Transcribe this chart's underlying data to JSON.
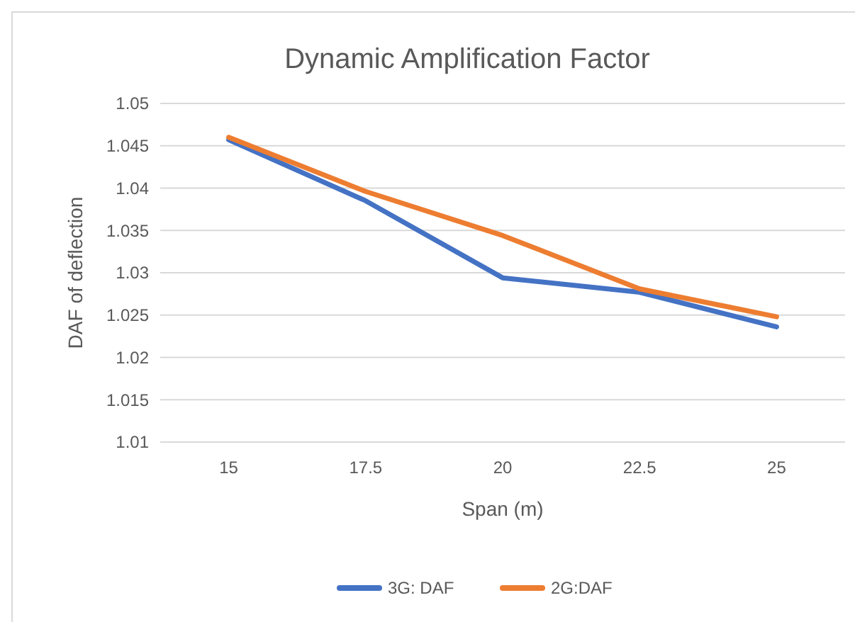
{
  "chart_data": {
    "type": "line",
    "title": "Dynamic Amplification Factor",
    "xlabel": "Span (m)",
    "ylabel": "DAF of deflection",
    "categories": [
      "15",
      "17.5",
      "20",
      "22.5",
      "25"
    ],
    "series": [
      {
        "name": "3G: DAF",
        "color": "#4472c4",
        "values": [
          1.0457,
          1.0385,
          1.0294,
          1.0277,
          1.0236
        ]
      },
      {
        "name": "2G:DAF",
        "color": "#ed7d31",
        "values": [
          1.046,
          1.0396,
          1.0344,
          1.0281,
          1.0248
        ]
      }
    ],
    "ylim": [
      1.01,
      1.05
    ],
    "yticks": [
      1.01,
      1.015,
      1.02,
      1.025,
      1.03,
      1.035,
      1.04,
      1.045,
      1.05
    ],
    "grid": "y",
    "legend": "bottom",
    "marker": "none",
    "line_style": "solid"
  }
}
